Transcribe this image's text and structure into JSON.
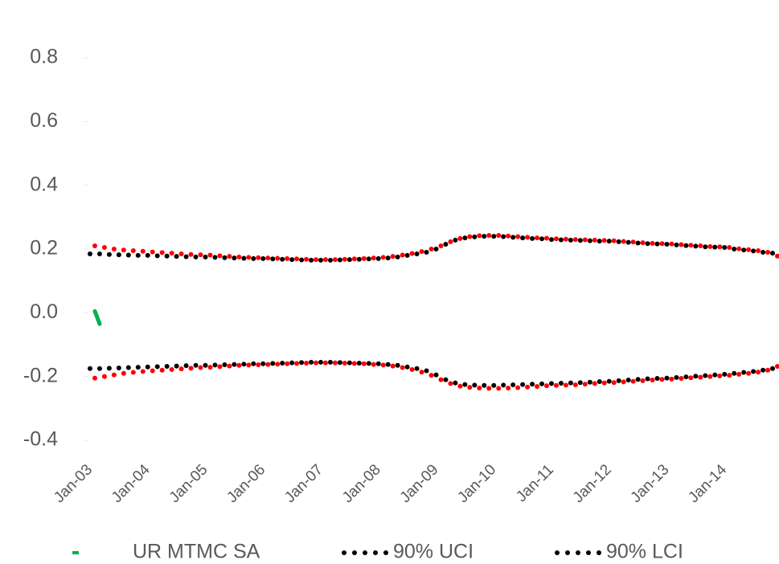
{
  "chart_data": {
    "type": "line",
    "categories": [
      "Jan-03",
      null,
      null,
      null,
      null,
      null,
      null,
      null,
      null,
      null,
      null,
      null,
      "Jan-04",
      null,
      null,
      null,
      null,
      null,
      null,
      null,
      null,
      null,
      null,
      null,
      "Jan-05",
      null,
      null,
      null,
      null,
      null,
      null,
      null,
      null,
      null,
      null,
      null,
      "Jan-06",
      null,
      null,
      null,
      null,
      null,
      null,
      null,
      null,
      null,
      null,
      null,
      "Jan-07",
      null,
      null,
      null,
      null,
      null,
      null,
      null,
      null,
      null,
      null,
      null,
      "Jan-08",
      null,
      null,
      null,
      null,
      null,
      null,
      null,
      null,
      null,
      null,
      null,
      "Jan-09",
      null,
      null,
      null,
      null,
      null,
      null,
      null,
      null,
      null,
      null,
      null,
      "Jan-10",
      null,
      null,
      null,
      null,
      null,
      null,
      null,
      null,
      null,
      null,
      null,
      "Jan-11",
      null,
      null,
      null,
      null,
      null,
      null,
      null,
      null,
      null,
      null,
      null,
      "Jan-12",
      null,
      null,
      null,
      null,
      null,
      null,
      null,
      null,
      null,
      null,
      null,
      "Jan-13",
      null,
      null,
      null,
      null,
      null,
      null,
      null,
      null,
      null,
      null,
      null,
      "Jan-14",
      null,
      null,
      null,
      null,
      null,
      null,
      null,
      null,
      null,
      null,
      null
    ],
    "series": [
      {
        "name": "UR MTMC SA",
        "color": "#00b050",
        "style": "line",
        "values": [
          0.005,
          -0.035,
          null,
          null,
          null,
          null,
          null,
          null,
          null,
          null,
          null,
          null,
          null,
          null,
          null,
          null,
          null,
          null,
          null,
          null,
          null,
          null,
          null,
          null,
          null,
          null,
          null,
          null,
          null,
          null,
          null,
          null,
          null,
          null,
          null,
          null,
          null,
          null,
          null,
          null,
          null,
          null,
          null,
          null,
          null,
          null,
          null,
          null,
          null,
          null,
          null,
          null,
          null,
          null,
          null,
          null,
          null,
          null,
          null,
          null,
          null,
          null,
          null,
          null,
          null,
          null,
          null,
          null,
          null,
          null,
          null,
          null,
          null,
          null,
          null,
          null,
          null,
          null,
          null,
          null,
          null,
          null,
          null,
          null,
          null,
          null,
          null,
          null,
          null,
          null,
          null,
          null,
          null,
          null,
          null,
          null,
          null,
          null,
          null,
          null,
          null,
          null,
          null,
          null,
          null,
          null,
          null,
          null,
          null,
          null,
          null,
          null,
          null,
          null,
          null,
          null,
          null,
          null,
          null,
          null,
          null,
          null,
          null,
          null,
          null,
          null,
          null,
          null,
          null,
          null,
          null,
          null,
          null,
          null,
          null,
          null,
          null,
          null,
          null,
          null,
          null,
          null,
          null,
          null
        ]
      },
      {
        "name": "90% UCI",
        "color": "#000000",
        "style": "dots",
        "values": [
          0.185,
          null,
          0.185,
          null,
          0.183,
          null,
          0.182,
          null,
          0.181,
          null,
          0.18,
          null,
          0.18,
          null,
          0.179,
          null,
          0.178,
          null,
          0.177,
          null,
          0.176,
          null,
          0.175,
          null,
          0.175,
          null,
          0.174,
          null,
          0.173,
          null,
          0.172,
          null,
          0.171,
          null,
          0.17,
          null,
          0.17,
          null,
          0.169,
          null,
          0.168,
          null,
          0.167,
          null,
          0.166,
          null,
          0.165,
          null,
          0.165,
          null,
          0.165,
          null,
          0.166,
          null,
          0.167,
          null,
          0.168,
          null,
          0.169,
          null,
          0.17,
          null,
          0.172,
          null,
          0.175,
          null,
          0.18,
          null,
          0.185,
          null,
          0.19,
          null,
          0.2,
          null,
          0.215,
          null,
          0.228,
          null,
          0.235,
          null,
          0.238,
          null,
          0.24,
          null,
          0.24,
          null,
          0.239,
          null,
          0.237,
          null,
          0.235,
          null,
          0.233,
          null,
          0.232,
          null,
          0.23,
          null,
          0.229,
          null,
          0.228,
          null,
          0.227,
          null,
          0.226,
          null,
          0.225,
          null,
          0.225,
          null,
          0.223,
          null,
          0.221,
          null,
          0.219,
          null,
          0.217,
          null,
          0.216,
          null,
          0.215,
          null,
          0.213,
          null,
          0.211,
          null,
          0.209,
          null,
          0.207,
          null,
          0.206,
          null,
          0.205,
          null,
          0.2,
          null,
          0.197,
          null,
          0.194,
          null,
          0.19,
          null,
          0.187,
          null
        ]
      },
      {
        "name": "90% LCI",
        "color": "#000000",
        "style": "dots",
        "values": [
          -0.175,
          null,
          -0.175,
          null,
          -0.174,
          null,
          -0.173,
          null,
          -0.172,
          null,
          -0.171,
          null,
          -0.17,
          null,
          -0.169,
          null,
          -0.168,
          null,
          -0.167,
          null,
          -0.166,
          null,
          -0.165,
          null,
          -0.165,
          null,
          -0.164,
          null,
          -0.163,
          null,
          -0.162,
          null,
          -0.161,
          null,
          -0.16,
          null,
          -0.16,
          null,
          -0.159,
          null,
          -0.158,
          null,
          -0.157,
          null,
          -0.156,
          null,
          -0.155,
          null,
          -0.155,
          null,
          -0.155,
          null,
          -0.156,
          null,
          -0.157,
          null,
          -0.158,
          null,
          -0.159,
          null,
          -0.16,
          null,
          -0.162,
          null,
          -0.165,
          null,
          -0.17,
          null,
          -0.175,
          null,
          -0.182,
          null,
          -0.195,
          null,
          -0.21,
          null,
          -0.22,
          null,
          -0.225,
          null,
          -0.227,
          null,
          -0.228,
          null,
          -0.228,
          null,
          -0.227,
          null,
          -0.226,
          null,
          -0.225,
          null,
          -0.224,
          null,
          -0.223,
          null,
          -0.222,
          null,
          -0.221,
          null,
          -0.22,
          null,
          -0.219,
          null,
          -0.218,
          null,
          -0.216,
          null,
          -0.215,
          null,
          -0.213,
          null,
          -0.211,
          null,
          -0.209,
          null,
          -0.207,
          null,
          -0.206,
          null,
          -0.205,
          null,
          -0.203,
          null,
          -0.201,
          null,
          -0.199,
          null,
          -0.197,
          null,
          -0.195,
          null,
          -0.193,
          null,
          -0.19,
          null,
          -0.187,
          null,
          -0.184,
          null,
          -0.18,
          null,
          -0.175,
          null
        ]
      },
      {
        "color": "#ff0000",
        "style": "dots",
        "values": [
          null,
          0.21,
          null,
          0.205,
          null,
          0.2,
          null,
          0.197,
          null,
          0.195,
          null,
          0.193,
          null,
          0.191,
          null,
          0.189,
          null,
          0.187,
          null,
          0.185,
          null,
          0.183,
          null,
          0.182,
          null,
          0.181,
          null,
          0.179,
          null,
          0.177,
          null,
          0.175,
          null,
          0.174,
          null,
          0.173,
          null,
          0.172,
          null,
          0.171,
          null,
          0.17,
          null,
          0.169,
          null,
          0.168,
          null,
          0.167,
          null,
          0.167,
          null,
          0.167,
          null,
          0.168,
          null,
          0.169,
          null,
          0.17,
          null,
          0.172,
          null,
          0.174,
          null,
          0.177,
          null,
          0.181,
          null,
          0.186,
          null,
          0.192,
          null,
          0.2,
          null,
          0.21,
          null,
          0.223,
          null,
          0.233,
          null,
          0.239,
          null,
          0.242,
          null,
          0.243,
          null,
          0.243,
          null,
          0.241,
          null,
          0.239,
          null,
          0.237,
          null,
          0.235,
          null,
          0.234,
          null,
          0.232,
          null,
          0.231,
          null,
          0.23,
          null,
          0.229,
          null,
          0.228,
          null,
          0.227,
          null,
          0.226,
          null,
          0.224,
          null,
          0.222,
          null,
          0.22,
          null,
          0.218,
          null,
          0.217,
          null,
          0.216,
          null,
          0.214,
          null,
          0.212,
          null,
          0.21,
          null,
          0.208,
          null,
          0.207,
          null,
          0.205,
          null,
          0.201,
          null,
          0.198,
          null,
          0.195,
          null,
          0.19,
          null,
          0.178
        ]
      },
      {
        "color": "#ff0000",
        "style": "dots",
        "values": [
          null,
          -0.205,
          null,
          -0.2,
          null,
          -0.195,
          null,
          -0.19,
          null,
          -0.187,
          null,
          -0.184,
          null,
          -0.182,
          null,
          -0.18,
          null,
          -0.178,
          null,
          -0.176,
          null,
          -0.174,
          null,
          -0.172,
          null,
          -0.171,
          null,
          -0.169,
          null,
          -0.167,
          null,
          -0.165,
          null,
          -0.164,
          null,
          -0.163,
          null,
          -0.162,
          null,
          -0.161,
          null,
          -0.16,
          null,
          -0.159,
          null,
          -0.158,
          null,
          -0.157,
          null,
          -0.157,
          null,
          -0.157,
          null,
          -0.158,
          null,
          -0.159,
          null,
          -0.16,
          null,
          -0.162,
          null,
          -0.164,
          null,
          -0.167,
          null,
          -0.172,
          null,
          -0.178,
          null,
          -0.186,
          null,
          -0.196,
          null,
          -0.21,
          null,
          -0.222,
          null,
          -0.23,
          null,
          -0.234,
          null,
          -0.236,
          null,
          -0.237,
          null,
          -0.237,
          null,
          -0.236,
          null,
          -0.235,
          null,
          -0.233,
          null,
          -0.231,
          null,
          -0.229,
          null,
          -0.228,
          null,
          -0.227,
          null,
          -0.226,
          null,
          -0.224,
          null,
          -0.222,
          null,
          -0.22,
          null,
          -0.219,
          null,
          -0.217,
          null,
          -0.215,
          null,
          -0.213,
          null,
          -0.211,
          null,
          -0.209,
          null,
          -0.208,
          null,
          -0.206,
          null,
          -0.204,
          null,
          -0.202,
          null,
          -0.2,
          null,
          -0.198,
          null,
          -0.196,
          null,
          -0.193,
          null,
          -0.19,
          null,
          -0.186,
          null,
          -0.18,
          null,
          -0.168
        ]
      }
    ],
    "ylim": [
      -0.4,
      0.8
    ],
    "yticks": [
      {
        "value": -0.4,
        "label": "-0.4"
      },
      {
        "value": -0.2,
        "label": "-0.2"
      },
      {
        "value": 0,
        "label": "0.0"
      },
      0.2,
      0.4,
      0.6,
      0.8
    ],
    "legend": "bottom"
  }
}
